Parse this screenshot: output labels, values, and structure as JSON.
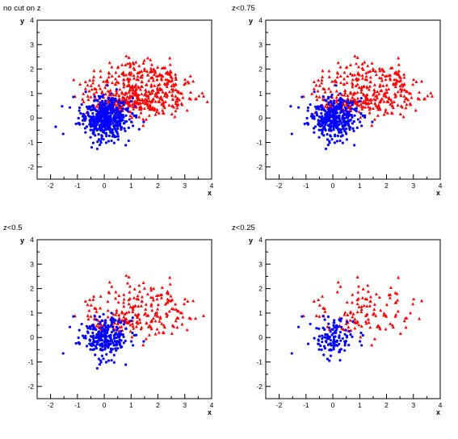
{
  "chart_data": [
    {
      "type": "scatter",
      "title": "no cut on z",
      "xlabel": "x",
      "ylabel": "y",
      "xlim": [
        -2.5,
        4
      ],
      "ylim": [
        -2.5,
        4
      ],
      "grid": false,
      "legend": "none",
      "xticks": [
        "-2",
        "-1",
        "0",
        "1",
        "2",
        "3",
        "4"
      ],
      "yticks": [
        "-2",
        "-1",
        "0",
        "1",
        "2",
        "3",
        "4"
      ],
      "series": [
        {
          "color": "#0000ff",
          "marker": "circle",
          "points": []
        },
        {
          "color": "#ff0000",
          "marker": "triangle",
          "points": []
        }
      ]
    },
    {
      "type": "scatter",
      "title": "z<0.75",
      "xlabel": "x",
      "ylabel": "y",
      "xlim": [
        -2.5,
        4
      ],
      "ylim": [
        -2.5,
        4
      ],
      "grid": false,
      "legend": "none",
      "xticks": [
        "-2",
        "-1",
        "0",
        "1",
        "2",
        "3",
        "4"
      ],
      "yticks": [
        "-2",
        "-1",
        "0",
        "1",
        "2",
        "3",
        "4"
      ],
      "series": [
        {
          "color": "#0000ff",
          "marker": "circle",
          "points": []
        },
        {
          "color": "#ff0000",
          "marker": "triangle",
          "points": []
        }
      ]
    },
    {
      "type": "scatter",
      "title": "z<0.5",
      "xlabel": "x",
      "ylabel": "y",
      "xlim": [
        -2.5,
        4
      ],
      "ylim": [
        -2.5,
        4
      ],
      "grid": false,
      "legend": "none",
      "xticks": [
        "-2",
        "-1",
        "0",
        "1",
        "2",
        "3",
        "4"
      ],
      "yticks": [
        "-2",
        "-1",
        "0",
        "1",
        "2",
        "3",
        "4"
      ],
      "series": [
        {
          "color": "#0000ff",
          "marker": "circle",
          "points": []
        },
        {
          "color": "#ff0000",
          "marker": "triangle",
          "points": []
        }
      ]
    },
    {
      "type": "scatter",
      "title": "z<0.25",
      "xlabel": "x",
      "ylabel": "y",
      "xlim": [
        -2.5,
        4
      ],
      "ylim": [
        -2.5,
        4
      ],
      "grid": false,
      "legend": "none",
      "xticks": [
        "-2",
        "-1",
        "0",
        "1",
        "2",
        "3",
        "4"
      ],
      "yticks": [
        "-2",
        "-1",
        "0",
        "1",
        "2",
        "3",
        "4"
      ],
      "series": [
        {
          "color": "#0000ff",
          "marker": "circle",
          "points": []
        },
        {
          "color": "#ff0000",
          "marker": "triangle",
          "points": []
        }
      ]
    }
  ]
}
